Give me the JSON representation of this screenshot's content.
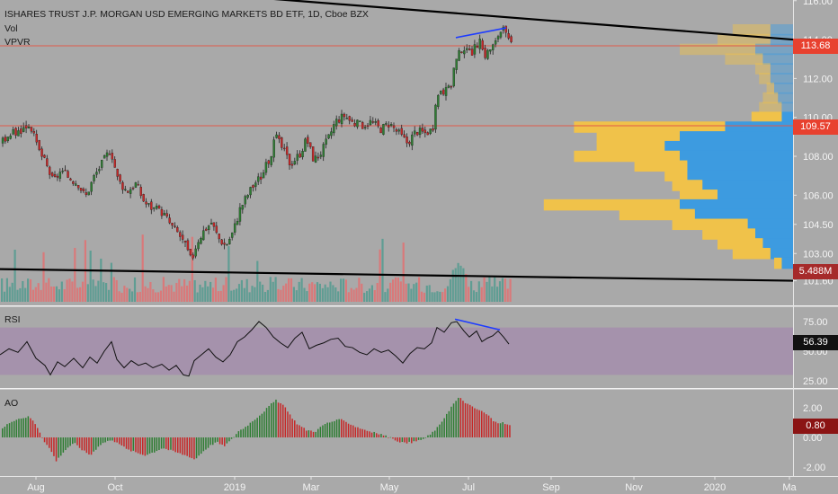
{
  "header": {
    "title": "ISHARES TRUST J.P. MORGAN USD EMERGING MARKETS BD ETF, 1D, Cboe BZX",
    "vol_label": "Vol",
    "vpvr_label": "VPVR"
  },
  "price_axis": {
    "ticks": [
      "116.00",
      "114.00",
      "112.00",
      "110.00",
      "108.00",
      "106.00",
      "104.50",
      "103.00",
      "101.60"
    ],
    "last_price": "113.68",
    "hline_price": "109.57",
    "volume": "5.488M"
  },
  "time_axis": {
    "labels": [
      "Aug",
      "Oct",
      "2019",
      "Mar",
      "May",
      "Jul",
      "Sep",
      "Nov",
      "2020",
      "Ma"
    ]
  },
  "panes": {
    "rsi": {
      "label": "RSI",
      "ticks": [
        "75.00",
        "50.00",
        "25.00"
      ],
      "value": "56.39"
    },
    "ao": {
      "label": "AO",
      "ticks": [
        "2.00",
        "0.00",
        "-2.00"
      ],
      "value": "0.80"
    }
  },
  "colors": {
    "background": "#a9a9a9",
    "up_candle": "#2e7d32",
    "down_candle": "#c62828",
    "vol_up": "#5f9d93",
    "vol_down": "#d9797a",
    "hline": "#e05a4a",
    "trendline": "#000000",
    "divergence": "#1e3cff",
    "rsi_band": "#a48ead",
    "vpvr_up": "#3d9be0",
    "vpvr_down": "#f0c24a"
  },
  "chart_data": [
    {
      "type": "candlestick",
      "title": "ISHARES TRUST J.P. MORGAN USD EMERGING MARKETS BD ETF, 1D, Cboe BZX",
      "x_labels": [
        "Aug",
        "Oct",
        "2019",
        "Mar",
        "May",
        "Jul",
        "Sep",
        "Nov",
        "2020",
        "Ma"
      ],
      "ylim": [
        101.2,
        116.3
      ],
      "close_path": [
        [
          0,
          108.7
        ],
        [
          8,
          109.1
        ],
        [
          16,
          109.2
        ],
        [
          24,
          109.4
        ],
        [
          32,
          109.7
        ],
        [
          40,
          108.5
        ],
        [
          50,
          107.6
        ],
        [
          58,
          106.7
        ],
        [
          66,
          107.2
        ],
        [
          76,
          106.9
        ],
        [
          86,
          106.6
        ],
        [
          94,
          105.9
        ],
        [
          104,
          107.0
        ],
        [
          112,
          107.6
        ],
        [
          122,
          108.4
        ],
        [
          130,
          106.8
        ],
        [
          140,
          106.2
        ],
        [
          150,
          106.6
        ],
        [
          160,
          105.6
        ],
        [
          170,
          105.3
        ],
        [
          180,
          105.1
        ],
        [
          190,
          104.4
        ],
        [
          198,
          104.0
        ],
        [
          206,
          103.3
        ],
        [
          212,
          102.6
        ],
        [
          218,
          103.6
        ],
        [
          226,
          104.2
        ],
        [
          234,
          104.6
        ],
        [
          242,
          103.8
        ],
        [
          250,
          103.4
        ],
        [
          258,
          104.1
        ],
        [
          266,
          105.3
        ],
        [
          274,
          106.0
        ],
        [
          282,
          106.6
        ],
        [
          290,
          107.0
        ],
        [
          298,
          107.8
        ],
        [
          306,
          109.0
        ],
        [
          314,
          108.3
        ],
        [
          322,
          107.6
        ],
        [
          332,
          108.1
        ],
        [
          340,
          108.9
        ],
        [
          348,
          107.8
        ],
        [
          356,
          108.2
        ],
        [
          364,
          108.9
        ],
        [
          372,
          109.8
        ],
        [
          382,
          110.1
        ],
        [
          392,
          109.7
        ],
        [
          402,
          109.6
        ],
        [
          412,
          109.8
        ],
        [
          422,
          109.4
        ],
        [
          432,
          109.7
        ],
        [
          442,
          109.2
        ],
        [
          452,
          108.7
        ],
        [
          462,
          109.3
        ],
        [
          472,
          109.2
        ],
        [
          480,
          109.4
        ],
        [
          484,
          110.6
        ],
        [
          488,
          111.5
        ],
        [
          494,
          111.3
        ],
        [
          500,
          111.5
        ],
        [
          504,
          112.6
        ],
        [
          508,
          113.1
        ],
        [
          514,
          113.7
        ],
        [
          520,
          113.2
        ],
        [
          526,
          113.5
        ],
        [
          532,
          113.9
        ],
        [
          538,
          113.2
        ],
        [
          544,
          113.5
        ],
        [
          550,
          113.8
        ],
        [
          554,
          114.4
        ],
        [
          558,
          114.5
        ],
        [
          562,
          114.2
        ],
        [
          566,
          113.7
        ]
      ],
      "horizontal_lines": [
        113.68,
        109.57
      ],
      "trendlines": [
        {
          "from": [
            162,
            116.6
          ],
          "to": [
            882,
            114.0
          ]
        },
        {
          "from": [
            0,
            102.2
          ],
          "to": [
            882,
            101.6
          ]
        }
      ],
      "divergence_line": {
        "from": [
          507,
          114.1
        ],
        "to": [
          563,
          114.6
        ]
      }
    },
    {
      "type": "bar",
      "title": "Vol",
      "last_value": "5.488M"
    },
    {
      "type": "bar",
      "title": "VPVR",
      "orientation": "horizontal",
      "price_levels": [
        114.5,
        114.0,
        113.5,
        113.0,
        112.5,
        112.0,
        111.5,
        111.0,
        110.5,
        110.0,
        109.5,
        109.0,
        108.5,
        108.0,
        107.5,
        107.0,
        106.5,
        106.0,
        105.5,
        105.0,
        104.5,
        104.0,
        103.5,
        103.0,
        102.5
      ],
      "up_volume": [
        6,
        6,
        10,
        8,
        6,
        6,
        5,
        4,
        3,
        3,
        18,
        30,
        34,
        30,
        28,
        28,
        24,
        20,
        30,
        26,
        12,
        10,
        8,
        6,
        3
      ],
      "down_volume": [
        10,
        14,
        20,
        10,
        4,
        3,
        2,
        4,
        6,
        8,
        40,
        22,
        18,
        28,
        14,
        6,
        8,
        10,
        36,
        20,
        20,
        14,
        12,
        10,
        2
      ]
    },
    {
      "type": "line",
      "title": "RSI",
      "ylim": [
        20,
        85
      ],
      "band": [
        30,
        70
      ],
      "y_ticks": [
        75,
        50,
        25
      ],
      "points": [
        [
          0,
          47
        ],
        [
          10,
          52
        ],
        [
          20,
          49
        ],
        [
          30,
          58
        ],
        [
          40,
          44
        ],
        [
          50,
          38
        ],
        [
          56,
          30
        ],
        [
          64,
          41
        ],
        [
          72,
          37
        ],
        [
          82,
          44
        ],
        [
          92,
          36
        ],
        [
          100,
          45
        ],
        [
          108,
          40
        ],
        [
          116,
          50
        ],
        [
          124,
          58
        ],
        [
          130,
          43
        ],
        [
          138,
          36
        ],
        [
          146,
          42
        ],
        [
          154,
          38
        ],
        [
          162,
          40
        ],
        [
          170,
          36
        ],
        [
          180,
          39
        ],
        [
          188,
          34
        ],
        [
          196,
          38
        ],
        [
          204,
          30
        ],
        [
          210,
          29
        ],
        [
          216,
          42
        ],
        [
          224,
          47
        ],
        [
          232,
          52
        ],
        [
          240,
          45
        ],
        [
          248,
          41
        ],
        [
          256,
          47
        ],
        [
          264,
          58
        ],
        [
          272,
          62
        ],
        [
          280,
          68
        ],
        [
          288,
          75
        ],
        [
          296,
          70
        ],
        [
          304,
          62
        ],
        [
          312,
          57
        ],
        [
          320,
          53
        ],
        [
          328,
          61
        ],
        [
          336,
          66
        ],
        [
          344,
          52
        ],
        [
          352,
          55
        ],
        [
          360,
          57
        ],
        [
          368,
          60
        ],
        [
          376,
          61
        ],
        [
          384,
          54
        ],
        [
          392,
          53
        ],
        [
          400,
          49
        ],
        [
          408,
          47
        ],
        [
          416,
          52
        ],
        [
          424,
          49
        ],
        [
          432,
          51
        ],
        [
          440,
          46
        ],
        [
          448,
          40
        ],
        [
          456,
          48
        ],
        [
          464,
          53
        ],
        [
          472,
          52
        ],
        [
          480,
          57
        ],
        [
          486,
          70
        ],
        [
          494,
          66
        ],
        [
          502,
          74
        ],
        [
          508,
          75
        ],
        [
          516,
          67
        ],
        [
          522,
          62
        ],
        [
          530,
          67
        ],
        [
          536,
          58
        ],
        [
          542,
          61
        ],
        [
          548,
          63
        ],
        [
          554,
          67
        ],
        [
          560,
          62
        ],
        [
          566,
          56
        ]
      ],
      "divergence_line": {
        "from": [
          506,
          77
        ],
        "to": [
          556,
          68
        ]
      },
      "last_value": "56.39"
    },
    {
      "type": "bar",
      "title": "AO",
      "ylim": [
        -2.4,
        2.9
      ],
      "y_ticks": [
        2,
        0,
        -2
      ],
      "series": [
        {
          "name": "AO",
          "points": [
            [
              2,
              0.6
            ],
            [
              12,
              1.1
            ],
            [
              22,
              1.3
            ],
            [
              32,
              1.4
            ],
            [
              40,
              0.8
            ],
            [
              48,
              -0.2
            ],
            [
              56,
              -0.9
            ],
            [
              62,
              -1.6
            ],
            [
              68,
              -1.1
            ],
            [
              76,
              -0.6
            ],
            [
              82,
              -0.4
            ],
            [
              92,
              -0.9
            ],
            [
              100,
              -1.2
            ],
            [
              110,
              -0.5
            ],
            [
              120,
              -0.2
            ],
            [
              130,
              -0.3
            ],
            [
              140,
              -0.8
            ],
            [
              150,
              -1.0
            ],
            [
              160,
              -1.2
            ],
            [
              170,
              -1.0
            ],
            [
              180,
              -0.7
            ],
            [
              190,
              -0.9
            ],
            [
              200,
              -1.1
            ],
            [
              210,
              -1.3
            ],
            [
              216,
              -1.5
            ],
            [
              224,
              -1.0
            ],
            [
              232,
              -0.6
            ],
            [
              240,
              -0.3
            ],
            [
              248,
              -0.6
            ],
            [
              256,
              -0.2
            ],
            [
              264,
              0.4
            ],
            [
              272,
              0.7
            ],
            [
              280,
              1.1
            ],
            [
              290,
              1.6
            ],
            [
              300,
              2.2
            ],
            [
              306,
              2.5
            ],
            [
              314,
              2.2
            ],
            [
              322,
              1.5
            ],
            [
              330,
              0.9
            ],
            [
              340,
              0.5
            ],
            [
              350,
              0.4
            ],
            [
              360,
              0.9
            ],
            [
              370,
              1.1
            ],
            [
              378,
              1.2
            ],
            [
              386,
              1.0
            ],
            [
              396,
              0.7
            ],
            [
              406,
              0.5
            ],
            [
              416,
              0.3
            ],
            [
              424,
              0.2
            ],
            [
              432,
              0.0
            ],
            [
              440,
              -0.2
            ],
            [
              450,
              -0.4
            ],
            [
              460,
              -0.3
            ],
            [
              470,
              -0.1
            ],
            [
              478,
              0.2
            ],
            [
              488,
              0.8
            ],
            [
              496,
              1.6
            ],
            [
              504,
              2.3
            ],
            [
              510,
              2.7
            ],
            [
              518,
              2.3
            ],
            [
              526,
              2.0
            ],
            [
              534,
              1.8
            ],
            [
              542,
              1.5
            ],
            [
              550,
              1.0
            ],
            [
              558,
              1.0
            ],
            [
              566,
              0.8
            ]
          ]
        }
      ],
      "last_value": "0.80"
    }
  ]
}
